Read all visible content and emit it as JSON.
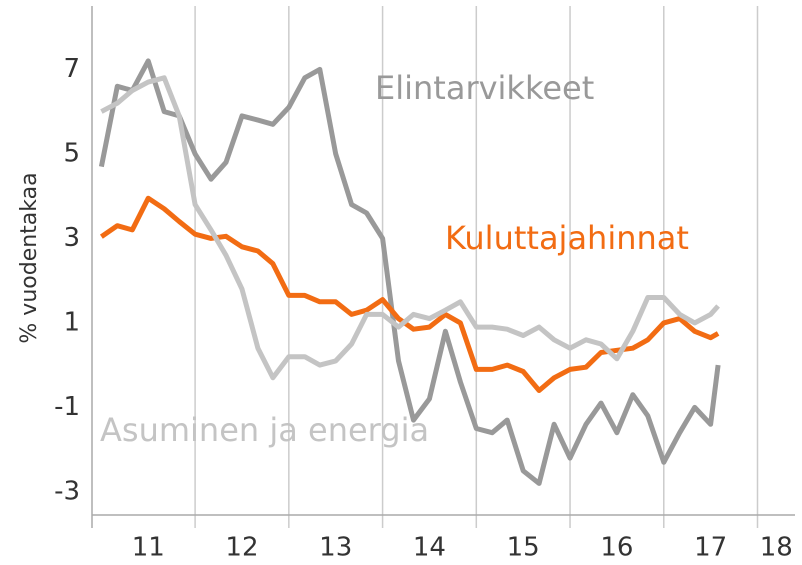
{
  "chart_data": {
    "type": "line",
    "ylabel": "% vuodentakaa",
    "x": [
      2011.0,
      2011.17,
      2011.33,
      2011.5,
      2011.67,
      2011.83,
      2012.0,
      2012.17,
      2012.33,
      2012.5,
      2012.67,
      2012.83,
      2013.0,
      2013.17,
      2013.33,
      2013.5,
      2013.67,
      2013.83,
      2014.0,
      2014.17,
      2014.33,
      2014.5,
      2014.67,
      2014.83,
      2015.0,
      2015.17,
      2015.33,
      2015.5,
      2015.67,
      2015.83,
      2016.0,
      2016.17,
      2016.33,
      2016.5,
      2016.67,
      2016.83,
      2017.0,
      2017.17,
      2017.33,
      2017.5,
      2017.58
    ],
    "series": [
      {
        "name": "Elintarvikkeet",
        "color": "#999999",
        "values": [
          4.7,
          6.6,
          6.5,
          7.2,
          6.0,
          5.9,
          5.0,
          4.4,
          4.8,
          5.9,
          5.8,
          5.7,
          6.1,
          6.8,
          7.0,
          5.0,
          3.8,
          3.6,
          3.0,
          0.1,
          -1.3,
          -0.8,
          0.8,
          -0.4,
          -1.5,
          -1.6,
          -1.3,
          -2.5,
          -2.8,
          -1.4,
          -2.2,
          -1.4,
          -0.9,
          -1.6,
          -0.7,
          -1.2,
          -2.3,
          -1.6,
          -1.0,
          -1.4,
          0.0
        ]
      },
      {
        "name": "Kuluttajahinnat",
        "color": "#f26c13",
        "values": [
          3.04,
          3.3,
          3.2,
          3.95,
          3.7,
          3.4,
          3.1,
          3.0,
          3.05,
          2.8,
          2.7,
          2.4,
          1.65,
          1.65,
          1.5,
          1.5,
          1.2,
          1.3,
          1.55,
          1.1,
          0.85,
          0.9,
          1.2,
          1.0,
          -0.1,
          -0.1,
          0.0,
          -0.15,
          -0.6,
          -0.3,
          -0.1,
          -0.05,
          0.3,
          0.35,
          0.4,
          0.6,
          1.0,
          1.1,
          0.8,
          0.65,
          0.75
        ]
      },
      {
        "name": "Asuminen ja energia",
        "color": "#c4c4c4",
        "values": [
          6.0,
          6.2,
          6.5,
          6.7,
          6.8,
          5.9,
          3.8,
          3.2,
          2.6,
          1.8,
          0.4,
          -0.3,
          0.2,
          0.2,
          0.0,
          0.1,
          0.5,
          1.2,
          1.2,
          0.9,
          1.2,
          1.1,
          1.3,
          1.5,
          0.9,
          0.9,
          0.85,
          0.7,
          0.9,
          0.6,
          0.4,
          0.6,
          0.5,
          0.15,
          0.8,
          1.6,
          1.6,
          1.2,
          1.0,
          1.2,
          1.4
        ]
      }
    ],
    "xlim": [
      2010.9,
      2018.4
    ],
    "xticks": [
      {
        "value": 2011.5,
        "label": "11"
      },
      {
        "value": 2012.5,
        "label": "12"
      },
      {
        "value": 2013.5,
        "label": "13"
      },
      {
        "value": 2014.5,
        "label": "14"
      },
      {
        "value": 2015.5,
        "label": "15"
      },
      {
        "value": 2016.5,
        "label": "16"
      },
      {
        "value": 2017.5,
        "label": "17"
      },
      {
        "value": 2018.2,
        "label": "18"
      }
    ],
    "xgrid": [
      2012,
      2013,
      2014,
      2015,
      2016,
      2017,
      2018
    ],
    "ylim": [
      -3.5,
      8.5
    ],
    "yticks": [
      -3,
      -1,
      1,
      3,
      5,
      7
    ]
  }
}
